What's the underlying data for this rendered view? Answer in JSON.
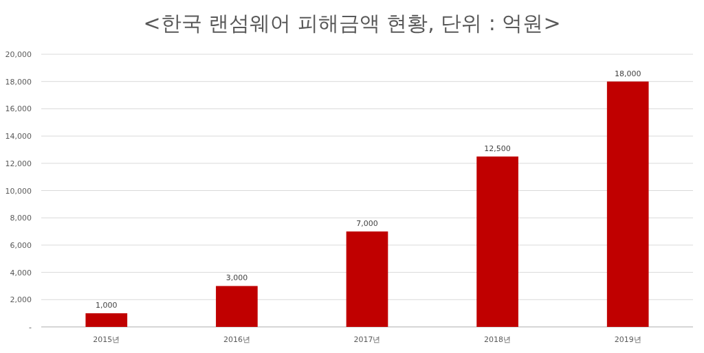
{
  "chart_data": {
    "type": "bar",
    "title": "<한국 랜섬웨어 피해금액 현황, 단위 : 억원>",
    "categories": [
      "2015년",
      "2016년",
      "2017년",
      "2018년",
      "2019년"
    ],
    "values": [
      1000,
      3000,
      7000,
      12500,
      18000
    ],
    "value_labels": [
      "1,000",
      "3,000",
      "7,000",
      "12,500",
      "18,000"
    ],
    "color": "#c00000",
    "ylim": [
      0,
      20000
    ],
    "yticks": [
      {
        "value": 0,
        "label": "-"
      },
      {
        "value": 2000,
        "label": "2,000"
      },
      {
        "value": 4000,
        "label": "4,000"
      },
      {
        "value": 6000,
        "label": "6,000"
      },
      {
        "value": 8000,
        "label": "8,000"
      },
      {
        "value": 10000,
        "label": "10,000"
      },
      {
        "value": 12000,
        "label": "12,000"
      },
      {
        "value": 14000,
        "label": "14,000"
      },
      {
        "value": 16000,
        "label": "16,000"
      },
      {
        "value": 18000,
        "label": "18,000"
      },
      {
        "value": 20000,
        "label": "20,000"
      }
    ],
    "grid": "y"
  }
}
